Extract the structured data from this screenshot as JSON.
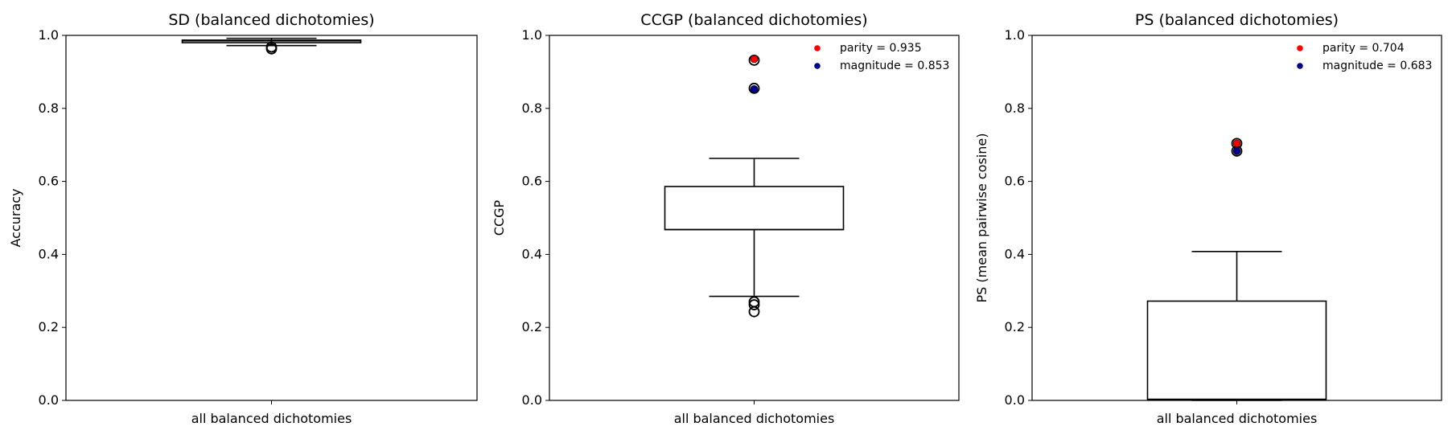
{
  "chart_data": [
    {
      "type": "box",
      "title": "SD (balanced dichotomies)",
      "xlabel": "",
      "ylabel": "Accuracy",
      "ylim": [
        0,
        1
      ],
      "yticks": [
        0.0,
        0.2,
        0.4,
        0.6,
        0.8,
        1.0
      ],
      "ytick_labels": [
        "0.0",
        "0.2",
        "0.4",
        "0.6",
        "0.8",
        "1.0"
      ],
      "categories": [
        "all balanced dichotomies"
      ],
      "box": {
        "whisker_low": 0.972,
        "q1": 0.98,
        "median": 0.985,
        "q3": 0.987,
        "whisker_high": 0.992
      },
      "fliers": [
        0.963,
        0.968
      ],
      "highlights": [],
      "legend_position": "none"
    },
    {
      "type": "box",
      "title": "CCGP (balanced dichotomies)",
      "xlabel": "",
      "ylabel": "CCGP",
      "ylim": [
        0,
        1
      ],
      "yticks": [
        0.0,
        0.2,
        0.4,
        0.6,
        0.8,
        1.0
      ],
      "ytick_labels": [
        "0.0",
        "0.2",
        "0.4",
        "0.6",
        "0.8",
        "1.0"
      ],
      "categories": [
        "all balanced dichotomies"
      ],
      "box": {
        "whisker_low": 0.285,
        "q1": 0.468,
        "median": 0.468,
        "q3": 0.586,
        "whisker_high": 0.663
      },
      "fliers": [
        0.243,
        0.262,
        0.27,
        0.855,
        0.932
      ],
      "highlights": [
        {
          "label": "parity = 0.935",
          "value": 0.935,
          "color": "#ff0000"
        },
        {
          "label": "magnitude = 0.853",
          "value": 0.853,
          "color": "#00008b"
        }
      ],
      "legend_position": "top-right"
    },
    {
      "type": "box",
      "title": "PS (balanced dichotomies)",
      "xlabel": "",
      "ylabel": "PS (mean pairwise cosine)",
      "ylim": [
        0,
        1
      ],
      "yticks": [
        0.0,
        0.2,
        0.4,
        0.6,
        0.8,
        1.0
      ],
      "ytick_labels": [
        "0.0",
        "0.2",
        "0.4",
        "0.6",
        "0.8",
        "1.0"
      ],
      "categories": [
        "all balanced dichotomies"
      ],
      "box": {
        "whisker_low": 0.0,
        "q1": 0.003,
        "median": 0.003,
        "q3": 0.272,
        "whisker_high": 0.408
      },
      "fliers": [
        0.683,
        0.704
      ],
      "highlights": [
        {
          "label": "parity = 0.704",
          "value": 0.704,
          "color": "#ff0000"
        },
        {
          "label": "magnitude = 0.683",
          "value": 0.683,
          "color": "#00008b"
        }
      ],
      "legend_position": "top-right"
    }
  ]
}
